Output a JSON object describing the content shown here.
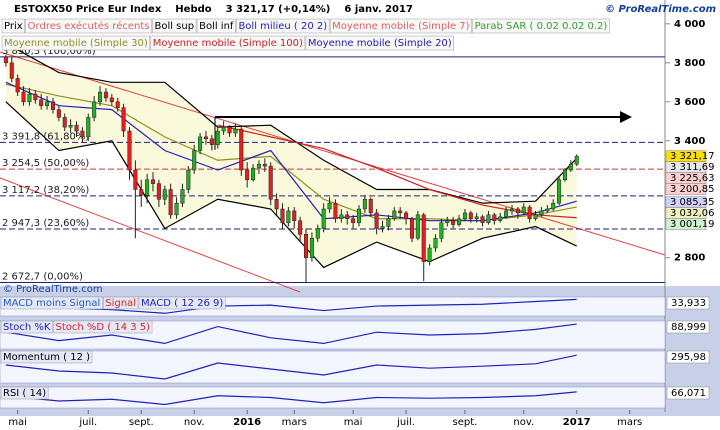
{
  "chart_data": {
    "type": "candlestick",
    "title": "ESTOXX50 Price Eur Index",
    "period": "Hebdo",
    "quote": "3 321,17 (+0,14%)",
    "date": "6 janv. 2017",
    "watermark": "© ProRealTime.com",
    "legend": [
      {
        "name": "Prix",
        "color": "#000000"
      },
      {
        "name": "Ordres exécutés récents",
        "color": "#e06060"
      },
      {
        "name": "Boll sup",
        "color": "#000000"
      },
      {
        "name": "Boll inf",
        "color": "#000000"
      },
      {
        "name": "Boll milieu ( 20 2)",
        "color": "#2020c0"
      },
      {
        "name": "Moyenne mobile (Simple 7)",
        "color": "#e06060"
      },
      {
        "name": "Parab SAR ( 0.02 0.02 0.2)",
        "color": "#30a030"
      },
      {
        "name": "Moyenne mobile (Simple 30)",
        "color": "#909020"
      },
      {
        "name": "Moyenne mobile (Simple 100)",
        "color": "#d02020"
      },
      {
        "name": "Moyenne mobile (Simple 20)",
        "color": "#2020c0"
      }
    ],
    "open": [
      3830,
      3800,
      3720,
      3650,
      3600,
      3640,
      3610,
      3580,
      3600,
      3560,
      3520,
      3470,
      3480,
      3450,
      3420,
      3520,
      3600,
      3650,
      3620,
      3600,
      3570,
      3450,
      3250,
      3150,
      3120,
      3200,
      3180,
      3100,
      3150,
      3020,
      3080,
      3150,
      3250,
      3350,
      3420,
      3410,
      3380,
      3450,
      3470,
      3440,
      3460,
      3250,
      3200,
      3260,
      3280,
      3270,
      3100,
      3050,
      2980,
      3040,
      2990,
      2920,
      2800,
      2900,
      2950,
      3050,
      3080,
      3000,
      3020,
      3000,
      2980,
      3050,
      3100,
      3030,
      2950,
      2960,
      3000,
      3040,
      3030,
      3000,
      2900,
      3020,
      2780,
      2850,
      2900,
      2980,
      2990,
      2970,
      3000,
      3030,
      3000,
      3010,
      2980,
      3020,
      2990,
      3010,
      3040,
      3050,
      3030,
      3060,
      3000,
      3020,
      3040,
      3050,
      3080,
      3200,
      3250,
      3280
    ],
    "high": [
      3840,
      3830,
      3740,
      3680,
      3670,
      3660,
      3640,
      3630,
      3620,
      3580,
      3540,
      3510,
      3500,
      3470,
      3540,
      3630,
      3680,
      3670,
      3640,
      3620,
      3590,
      3470,
      3300,
      3200,
      3230,
      3240,
      3200,
      3170,
      3180,
      3110,
      3180,
      3270,
      3380,
      3440,
      3450,
      3430,
      3470,
      3500,
      3480,
      3490,
      3470,
      3290,
      3280,
      3300,
      3310,
      3290,
      3130,
      3080,
      3060,
      3060,
      3010,
      2950,
      2930,
      2970,
      3080,
      3110,
      3100,
      3050,
      3040,
      3020,
      3070,
      3120,
      3110,
      3050,
      2990,
      3020,
      3060,
      3060,
      3040,
      3010,
      3040,
      3030,
      2870,
      2920,
      3000,
      3010,
      3010,
      3020,
      3050,
      3040,
      3030,
      3020,
      3040,
      3030,
      3030,
      3060,
      3070,
      3060,
      3080,
      3070,
      3040,
      3060,
      3070,
      3100,
      3220,
      3260,
      3300,
      3330
    ],
    "low": [
      3780,
      3700,
      3630,
      3580,
      3580,
      3590,
      3560,
      3560,
      3540,
      3500,
      3450,
      3440,
      3420,
      3390,
      3400,
      3500,
      3580,
      3600,
      3580,
      3550,
      3420,
      3200,
      2900,
      3060,
      3080,
      3140,
      3060,
      3070,
      3000,
      3000,
      3060,
      3130,
      3230,
      3330,
      3380,
      3350,
      3360,
      3430,
      3420,
      3420,
      3220,
      3160,
      3190,
      3230,
      3240,
      3070,
      3020,
      2950,
      2960,
      2950,
      2880,
      2672.7,
      2780,
      2880,
      2930,
      3030,
      2980,
      2980,
      2970,
      2950,
      2960,
      3030,
      3010,
      2920,
      2930,
      2940,
      2990,
      3000,
      2970,
      2880,
      2890,
      2680,
      2760,
      2830,
      2880,
      2960,
      2950,
      2960,
      2990,
      2980,
      2980,
      2960,
      2970,
      2970,
      2980,
      3000,
      3020,
      3000,
      3020,
      2980,
      2990,
      3010,
      3030,
      3040,
      3070,
      3190,
      3240,
      3270
    ],
    "close": [
      3800,
      3720,
      3650,
      3600,
      3640,
      3610,
      3580,
      3600,
      3560,
      3520,
      3470,
      3480,
      3450,
      3420,
      3520,
      3600,
      3650,
      3620,
      3600,
      3570,
      3450,
      3250,
      3150,
      3120,
      3200,
      3180,
      3100,
      3150,
      3020,
      3080,
      3150,
      3250,
      3350,
      3420,
      3410,
      3380,
      3450,
      3470,
      3440,
      3460,
      3250,
      3200,
      3260,
      3280,
      3270,
      3100,
      3050,
      2980,
      3040,
      2990,
      2920,
      2800,
      2900,
      2950,
      3050,
      3080,
      3000,
      3020,
      3000,
      2980,
      3050,
      3100,
      3030,
      2950,
      2960,
      3000,
      3040,
      3030,
      3000,
      2900,
      3020,
      2780,
      2850,
      2900,
      2980,
      2990,
      2970,
      3000,
      3030,
      3000,
      3010,
      2980,
      3020,
      2990,
      3010,
      3040,
      3050,
      3030,
      3060,
      3000,
      3020,
      3040,
      3050,
      3080,
      3200,
      3250,
      3280,
      3321.17
    ],
    "up_color": "#20b020",
    "down_color": "#e02020",
    "xlim": [
      -1,
      112
    ],
    "xticks": [
      {
        "value": 2,
        "label": "mai"
      },
      {
        "value": 14,
        "label": "juil."
      },
      {
        "value": 23,
        "label": "sept."
      },
      {
        "value": 32,
        "label": "nov."
      },
      {
        "value": 41,
        "label": "2016"
      },
      {
        "value": 49,
        "label": "mars"
      },
      {
        "value": 59,
        "label": "mai"
      },
      {
        "value": 68,
        "label": "juil."
      },
      {
        "value": 78,
        "label": "sept."
      },
      {
        "value": 88,
        "label": "nov."
      },
      {
        "value": 97,
        "label": "2017"
      },
      {
        "value": 106,
        "label": "mars"
      }
    ],
    "ylim": [
      2660,
      4030
    ],
    "yticks": [
      {
        "value": 4000,
        "label": "4 000"
      },
      {
        "value": 3800,
        "label": "3 800"
      },
      {
        "value": 3600,
        "label": "3 600"
      },
      {
        "value": 3400,
        "label": "3 400"
      },
      {
        "value": 2800,
        "label": "2 800"
      }
    ],
    "overlay_x": [
      0,
      9,
      18,
      27,
      36,
      45,
      54,
      63,
      72,
      81,
      90,
      97
    ],
    "overlays": [
      {
        "color": "#000000",
        "values": [
          3900,
          3750,
          3700,
          3700,
          3470,
          3480,
          3300,
          3150,
          3150,
          3080,
          3090,
          3310
        ]
      },
      {
        "color": "#000000",
        "values": [
          3600,
          3350,
          3400,
          2950,
          3100,
          3050,
          2750,
          2880,
          2780,
          2900,
          2960,
          2860
        ]
      },
      {
        "color": "#909020",
        "values": [
          3690,
          3630,
          3580,
          3420,
          3300,
          3320,
          3100,
          3000,
          3000,
          2990,
          3020,
          3060
        ]
      },
      {
        "color": "#2020c0",
        "values": [
          3700,
          3580,
          3560,
          3350,
          3250,
          3350,
          3000,
          3020,
          2990,
          2990,
          3030,
          3090
        ]
      },
      {
        "color": "#d02020",
        "values": [
          null,
          null,
          null,
          null,
          3480,
          3420,
          3360,
          3260,
          3150,
          3070,
          3020,
          3005
        ]
      }
    ],
    "band_color": "#fbf9dc",
    "fib_levels": [
      {
        "value": 3830.3,
        "label": "3 830,3 (100,00%)"
      },
      {
        "value": 3391.8,
        "label": "3 391,8 (61,80%)"
      },
      {
        "value": 3254.5,
        "label": "3 254,5 (50,00%)"
      },
      {
        "value": 3117.2,
        "label": "3 117,2 (38,20%)"
      },
      {
        "value": 2947.3,
        "label": "2 947,3 (23,60%)"
      },
      {
        "value": 2672.7,
        "label": "2 672,7 (0,00%)"
      }
    ],
    "right_labels": [
      {
        "value": 3321.17,
        "label": "3 321,17",
        "color": "#ffe000"
      },
      {
        "value": 3311.69,
        "label": "3 311,69",
        "color": "#e8e8e8"
      },
      {
        "value": 3225.63,
        "label": "3 225,63",
        "color": "#ffd0d0"
      },
      {
        "value": 3200.85,
        "label": "3 200,85",
        "color": "#ffd0d0"
      },
      {
        "value": 3085.35,
        "label": "3 085,35",
        "color": "#d0d0ff"
      },
      {
        "value": 3032.06,
        "label": "3 032,06",
        "color": "#f0f0c0"
      },
      {
        "value": 3001.19,
        "label": "3 001,19",
        "color": "#d0f0d0"
      }
    ],
    "panes": [
      {
        "legend": [
          {
            "name": "MACD moins Signal",
            "color": "#2060c0"
          },
          {
            "name": "Signal",
            "color": "#e02020"
          },
          {
            "name": "MACD ( 12 26 9)",
            "color": "#2020c0"
          }
        ],
        "ylim": [
          -150,
          60
        ],
        "series": [
          {
            "color": "#2020c0",
            "values": [
              -20,
              -60,
              -80,
              -120,
              -40,
              -30,
              -90,
              -40,
              -30,
              -20,
              10,
              34
            ]
          }
        ],
        "last": {
          "value": 33.933,
          "label": "33,933"
        }
      },
      {
        "legend": [
          {
            "name": "Stoch %K",
            "color": "#2020c0"
          },
          {
            "name": "Stoch %D ( 14 3 5)",
            "color": "#e02020"
          }
        ],
        "ylim": [
          0,
          100
        ],
        "series": [
          {
            "color": "#2020c0",
            "values": [
              60,
              30,
              50,
              20,
              80,
              40,
              20,
              60,
              50,
              55,
              70,
              89
            ]
          }
        ],
        "last": {
          "value": 88.999,
          "label": "88,999"
        }
      },
      {
        "legend": [
          {
            "name": "Momentum ( 12 )",
            "color": "#000000"
          }
        ],
        "ylim": [
          -400,
          400
        ],
        "series": [
          {
            "color": "#2020c0",
            "values": [
              50,
              -100,
              -150,
              -300,
              100,
              -50,
              -200,
              50,
              -30,
              20,
              80,
              295.98
            ]
          }
        ],
        "last": {
          "value": 295.98,
          "label": "295,98"
        }
      },
      {
        "legend": [
          {
            "name": "RSI ( 14)",
            "color": "#000000"
          }
        ],
        "ylim": [
          20,
          80
        ],
        "series": [
          {
            "color": "#2020c0",
            "values": [
              55,
              40,
              45,
              30,
              55,
              50,
              35,
              50,
              48,
              50,
              55,
              66.071
            ]
          }
        ],
        "last": {
          "value": 66.071,
          "label": "66,071"
        }
      }
    ]
  }
}
